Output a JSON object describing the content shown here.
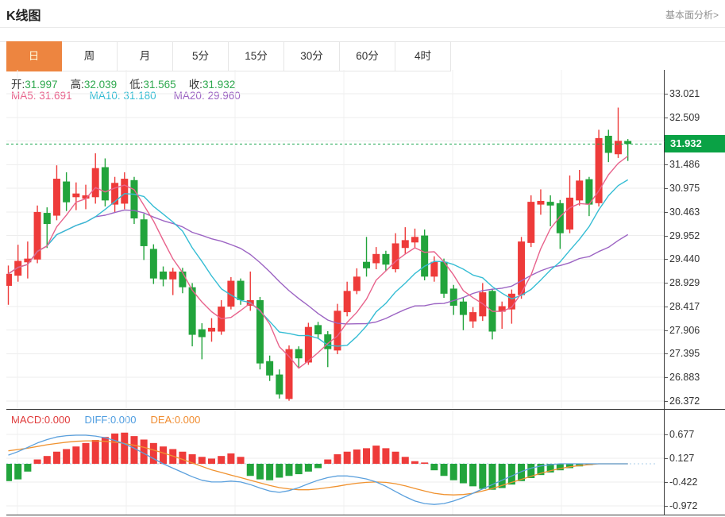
{
  "header": {
    "title": "K线图",
    "link": "基本面分析>"
  },
  "tabs": {
    "items": [
      {
        "label": "日",
        "active": true
      },
      {
        "label": "周",
        "active": false
      },
      {
        "label": "月",
        "active": false
      },
      {
        "label": "5分",
        "active": false
      },
      {
        "label": "15分",
        "active": false
      },
      {
        "label": "30分",
        "active": false
      },
      {
        "label": "60分",
        "active": false
      },
      {
        "label": "4时",
        "active": false
      }
    ]
  },
  "legend": {
    "open_label": "开:",
    "open": "31.997",
    "high_label": "高:",
    "high": "32.039",
    "low_label": "低:",
    "low": "31.565",
    "close_label": "收:",
    "close": "31.932",
    "ma5_label": "MA5:",
    "ma5": "31.691",
    "ma10_label": "MA10:",
    "ma10": "31.180",
    "ma20_label": "MA20:",
    "ma20": "29.960"
  },
  "macd_legend": {
    "macd_label": "MACD:",
    "macd": "0.000",
    "diff_label": "DIFF:",
    "diff": "0.000",
    "dea_label": "DEA:",
    "dea": "0.000"
  },
  "current_price_label": "31.932",
  "colors": {
    "up": "#EE3B3A",
    "down": "#22A43C",
    "badge": "#0AA245",
    "price_line": "#1FA851",
    "ma5": "#E8638C",
    "ma10": "#35BDD4",
    "ma20": "#9C64C3",
    "diff_line": "#5BA0DD",
    "dea_line": "#F0922F",
    "tab_active": "#ED8540"
  },
  "chart_data": [
    {
      "type": "candlestick",
      "title": "K线图",
      "period": "日",
      "legend_entries": [
        "MA5",
        "MA10",
        "MA20"
      ],
      "current_price": 31.932,
      "y_ticks": [
        33.021,
        32.509,
        31.998,
        31.486,
        30.975,
        30.463,
        29.952,
        29.44,
        28.929,
        28.417,
        27.906,
        27.395,
        26.883,
        26.372
      ],
      "ylim": [
        26.2,
        33.5
      ],
      "grid": true,
      "ohlc": [
        [
          28.86,
          29.3,
          28.45,
          29.12
        ],
        [
          29.08,
          29.75,
          28.95,
          29.4
        ],
        [
          29.37,
          29.82,
          29.02,
          29.45
        ],
        [
          29.43,
          30.6,
          29.35,
          30.46
        ],
        [
          30.44,
          30.56,
          29.68,
          30.2
        ],
        [
          30.38,
          31.47,
          30.28,
          31.18
        ],
        [
          31.12,
          31.32,
          30.48,
          30.67
        ],
        [
          30.78,
          31.1,
          30.5,
          30.86
        ],
        [
          30.75,
          31.05,
          30.52,
          30.82
        ],
        [
          30.78,
          31.73,
          30.64,
          31.41
        ],
        [
          31.43,
          31.62,
          30.58,
          30.71
        ],
        [
          30.62,
          31.22,
          30.45,
          31.09
        ],
        [
          30.64,
          31.32,
          30.52,
          31.18
        ],
        [
          31.15,
          31.22,
          30.2,
          30.32
        ],
        [
          30.3,
          30.42,
          29.42,
          29.72
        ],
        [
          29.66,
          29.76,
          28.9,
          29.02
        ],
        [
          29.17,
          29.28,
          28.85,
          29.0
        ],
        [
          29.0,
          29.25,
          28.66,
          29.17
        ],
        [
          29.17,
          29.25,
          28.7,
          28.83
        ],
        [
          28.83,
          28.92,
          27.55,
          27.8
        ],
        [
          27.92,
          28.05,
          27.27,
          27.75
        ],
        [
          27.87,
          28.16,
          27.65,
          27.95
        ],
        [
          27.87,
          28.55,
          27.8,
          28.41
        ],
        [
          28.41,
          29.05,
          28.35,
          28.97
        ],
        [
          28.97,
          29.02,
          28.45,
          28.55
        ],
        [
          28.43,
          29.17,
          28.32,
          28.55
        ],
        [
          28.55,
          28.62,
          27.05,
          27.18
        ],
        [
          27.23,
          27.35,
          26.8,
          26.92
        ],
        [
          26.94,
          27.05,
          26.42,
          26.51
        ],
        [
          26.41,
          27.57,
          26.372,
          27.49
        ],
        [
          27.49,
          27.55,
          27.08,
          27.29
        ],
        [
          27.2,
          28.06,
          27.15,
          27.97
        ],
        [
          28.01,
          28.08,
          27.72,
          27.81
        ],
        [
          27.81,
          27.88,
          27.1,
          27.49
        ],
        [
          27.46,
          28.47,
          27.38,
          28.32
        ],
        [
          28.29,
          28.95,
          28.2,
          28.75
        ],
        [
          28.75,
          29.24,
          28.68,
          29.06
        ],
        [
          29.38,
          29.92,
          29.06,
          29.24
        ],
        [
          29.35,
          29.7,
          29.22,
          29.55
        ],
        [
          29.55,
          29.62,
          29.18,
          29.32
        ],
        [
          29.22,
          30.0,
          29.15,
          29.78
        ],
        [
          29.68,
          30.13,
          29.55,
          29.85
        ],
        [
          29.8,
          30.1,
          29.68,
          29.92
        ],
        [
          29.95,
          30.08,
          28.98,
          29.06
        ],
        [
          29.06,
          29.5,
          28.95,
          29.38
        ],
        [
          29.38,
          29.45,
          28.6,
          28.69
        ],
        [
          28.8,
          28.88,
          28.23,
          28.43
        ],
        [
          28.52,
          28.6,
          27.9,
          28.23
        ],
        [
          28.09,
          28.4,
          27.95,
          28.29
        ],
        [
          28.2,
          28.92,
          28.1,
          28.72
        ],
        [
          28.75,
          28.8,
          27.7,
          27.87
        ],
        [
          28.3,
          28.52,
          27.93,
          28.42
        ],
        [
          28.35,
          28.78,
          28.04,
          28.69
        ],
        [
          28.66,
          29.92,
          28.58,
          29.82
        ],
        [
          29.79,
          30.82,
          29.7,
          30.68
        ],
        [
          30.62,
          30.95,
          30.4,
          30.7
        ],
        [
          30.68,
          30.82,
          30.15,
          30.6
        ],
        [
          30.65,
          30.72,
          29.66,
          30.0
        ],
        [
          30.08,
          31.25,
          30.0,
          30.77
        ],
        [
          30.71,
          31.37,
          30.6,
          31.14
        ],
        [
          31.17,
          31.22,
          30.37,
          30.62
        ],
        [
          30.65,
          32.24,
          30.58,
          32.06
        ],
        [
          32.11,
          32.24,
          31.54,
          31.74
        ],
        [
          31.71,
          32.72,
          31.63,
          32.0
        ],
        [
          31.997,
          32.039,
          31.565,
          31.932
        ]
      ]
    },
    {
      "type": "bar",
      "name": "MACD",
      "y_ticks": [
        0.677,
        0.127,
        -0.422,
        -0.972
      ],
      "grid": true,
      "values": [
        -0.4,
        -0.36,
        -0.18,
        0.1,
        0.18,
        0.28,
        0.34,
        0.4,
        0.48,
        0.55,
        0.62,
        0.7,
        0.72,
        0.64,
        0.56,
        0.48,
        0.4,
        0.34,
        0.28,
        0.22,
        0.16,
        0.12,
        0.18,
        0.24,
        0.16,
        -0.28,
        -0.36,
        -0.38,
        -0.32,
        -0.28,
        -0.24,
        -0.18,
        -0.1,
        0.1,
        0.22,
        0.28,
        0.33,
        0.36,
        0.42,
        0.36,
        0.28,
        0.16,
        0.06,
        0.03,
        -0.15,
        -0.28,
        -0.38,
        -0.45,
        -0.52,
        -0.58,
        -0.6,
        -0.56,
        -0.48,
        -0.4,
        -0.33,
        -0.26,
        -0.2,
        -0.15,
        -0.1,
        -0.06,
        -0.03,
        0,
        0,
        0,
        0
      ],
      "series": [
        {
          "name": "DIFF",
          "values": [
            0.2,
            0.28,
            0.38,
            0.48,
            0.56,
            0.62,
            0.65,
            0.66,
            0.66,
            0.64,
            0.6,
            0.54,
            0.46,
            0.36,
            0.24,
            0.12,
            0.0,
            -0.1,
            -0.2,
            -0.3,
            -0.38,
            -0.42,
            -0.42,
            -0.4,
            -0.42,
            -0.48,
            -0.56,
            -0.63,
            -0.66,
            -0.62,
            -0.55,
            -0.46,
            -0.38,
            -0.32,
            -0.28,
            -0.28,
            -0.31,
            -0.35,
            -0.42,
            -0.52,
            -0.64,
            -0.76,
            -0.86,
            -0.92,
            -0.94,
            -0.92,
            -0.86,
            -0.78,
            -0.68,
            -0.58,
            -0.48,
            -0.38,
            -0.28,
            -0.18,
            -0.1,
            -0.05,
            -0.02,
            0,
            0,
            0,
            0,
            0,
            0,
            0,
            0
          ]
        },
        {
          "name": "DEA",
          "values": [
            0.3,
            0.33,
            0.36,
            0.4,
            0.44,
            0.47,
            0.5,
            0.52,
            0.53,
            0.53,
            0.52,
            0.5,
            0.47,
            0.43,
            0.38,
            0.32,
            0.25,
            0.18,
            0.1,
            0.02,
            -0.06,
            -0.14,
            -0.2,
            -0.26,
            -0.32,
            -0.38,
            -0.44,
            -0.5,
            -0.55,
            -0.58,
            -0.6,
            -0.6,
            -0.58,
            -0.55,
            -0.52,
            -0.48,
            -0.45,
            -0.43,
            -0.42,
            -0.43,
            -0.46,
            -0.51,
            -0.57,
            -0.63,
            -0.68,
            -0.71,
            -0.72,
            -0.71,
            -0.68,
            -0.63,
            -0.57,
            -0.5,
            -0.43,
            -0.36,
            -0.29,
            -0.22,
            -0.16,
            -0.11,
            -0.07,
            -0.04,
            -0.02,
            0,
            0,
            0,
            0
          ]
        }
      ]
    }
  ]
}
